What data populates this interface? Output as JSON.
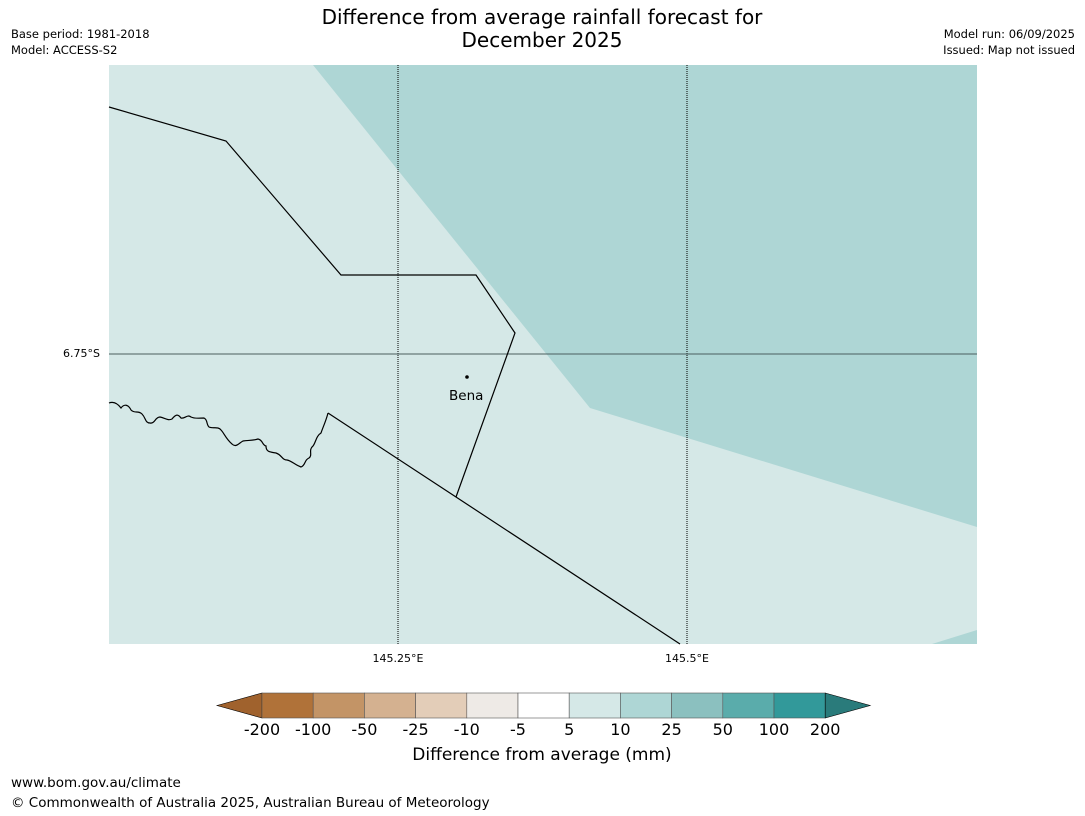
{
  "header": {
    "base_period": "Base period: 1981-2018",
    "model": "Model: ACCESS-S2",
    "title_line1": "Difference from average rainfall forecast for",
    "title_line2": "December 2025",
    "model_run": "Model run: 06/09/2025",
    "issued": "Issued: Map not issued"
  },
  "map": {
    "lat_label": "6.75°S",
    "lon_labels": [
      "145.25°E",
      "145.5°E"
    ],
    "place": "Bena",
    "colors": {
      "band_5_10": "#d5e8e7",
      "band_10_25": "#aed6d5",
      "band_25_50": "#8bc0bf"
    }
  },
  "legend": {
    "title": "Difference from average (mm)",
    "ticks": [
      "-200",
      "-100",
      "-50",
      "-25",
      "-10",
      "-5",
      "5",
      "10",
      "25",
      "50",
      "100",
      "200"
    ],
    "colors": [
      "#a0622d",
      "#b07239",
      "#c39466",
      "#d4b190",
      "#e3cdb8",
      "#eeeae6",
      "#ffffff",
      "#d5e8e7",
      "#aed6d5",
      "#8bc0bf",
      "#5aacab",
      "#32999a",
      "#2a7b7b"
    ]
  },
  "footer": {
    "url": "www.bom.gov.au/climate",
    "copyright": "© Commonwealth of Australia 2025, Australian Bureau of Meteorology"
  }
}
